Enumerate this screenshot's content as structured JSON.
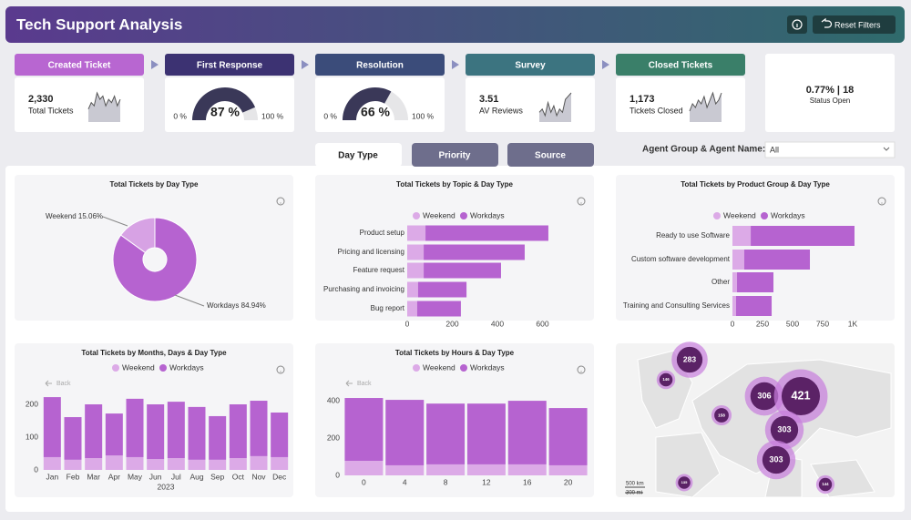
{
  "header": {
    "title": "Tech Support Analysis",
    "button": "Reset Filters"
  },
  "steps": [
    "Created Ticket",
    "First Response",
    "Resolution",
    "Survey",
    "Closed Tickets"
  ],
  "kpis": [
    {
      "type": "spark",
      "value": "2,330",
      "label": "Total Tickets",
      "spark": [
        4,
        6,
        5,
        9,
        7,
        8,
        5,
        7,
        6,
        8,
        5,
        7
      ]
    },
    {
      "type": "gauge",
      "value": 87,
      "value_label": "87 %",
      "min": {
        "value": 0,
        "label": "0 %"
      },
      "max": {
        "value": 100,
        "label": "100 %"
      }
    },
    {
      "type": "gauge",
      "value": 66,
      "value_label": "66 %",
      "min": {
        "value": 0,
        "label": "0 %"
      },
      "max": {
        "value": 100,
        "label": "100 %"
      }
    },
    {
      "type": "spark",
      "value": "3.51",
      "label": "AV Reviews",
      "spark": [
        3,
        4,
        2,
        6,
        3,
        5,
        2,
        4,
        3,
        7,
        8,
        9
      ]
    },
    {
      "type": "spark",
      "value": "1,173",
      "label": "Tickets Closed",
      "spark": [
        3,
        5,
        4,
        6,
        5,
        7,
        4,
        6,
        8,
        5,
        6,
        8
      ]
    }
  ],
  "status": {
    "value": "0.77% | 18",
    "label": "Status Open"
  },
  "tabs": [
    "Day Type",
    "Priority",
    "Source"
  ],
  "filter": {
    "label": "Agent Group & Agent Name:",
    "value": "All"
  },
  "chart_data": [
    {
      "type": "pie",
      "title": "Total Tickets by Day Type",
      "categories": [
        "Weekend",
        "Workdays"
      ],
      "values": [
        15.06,
        84.94
      ],
      "value_labels": [
        "15.06%",
        "84.94%"
      ],
      "colors": [
        "#d7a2e4",
        "#b663d0"
      ]
    },
    {
      "type": "hbar",
      "title": "Total Tickets by Topic & Day Type",
      "categories": [
        "Product setup",
        "Pricing and licensing",
        "Feature request",
        "Purchasing and invoicing",
        "Bug report"
      ],
      "series": [
        {
          "name": "Weekend",
          "color": "#dcaae7",
          "values": [
            81,
            73,
            73,
            48,
            44
          ]
        },
        {
          "name": "Workdays",
          "color": "#b663d0",
          "values": [
            545,
            448,
            343,
            215,
            194
          ]
        }
      ],
      "xlim": [
        0,
        640
      ],
      "xticks": [
        0,
        200,
        400,
        600
      ]
    },
    {
      "type": "hbar",
      "title": "Total Tickets by Product Group & Day Type",
      "categories": [
        "Ready to use Software",
        "Custom software development",
        "Other",
        "Training and Consulting Services"
      ],
      "series": [
        {
          "name": "Weekend",
          "color": "#dcaae7",
          "values": [
            152,
            98,
            38,
            30
          ]
        },
        {
          "name": "Workdays",
          "color": "#b663d0",
          "values": [
            863,
            546,
            303,
            296
          ]
        }
      ],
      "xlim": [
        0,
        1250
      ],
      "xticks": [
        0,
        250,
        500,
        750,
        {
          "value": 1000,
          "label": "1K"
        }
      ]
    },
    {
      "type": "bar",
      "title": "Total Tickets by Months, Days & Day Type",
      "back": "Back",
      "xlabel": "2023",
      "categories": [
        "Jan",
        "Feb",
        "Mar",
        "Apr",
        "May",
        "Jun",
        "Jul",
        "Aug",
        "Sep",
        "Oct",
        "Nov",
        "Dec"
      ],
      "series": [
        {
          "name": "Weekend",
          "color": "#dcaae7",
          "values": [
            39,
            31,
            36,
            44,
            39,
            33,
            36,
            31,
            31,
            36,
            42,
            39
          ]
        },
        {
          "name": "Workdays",
          "color": "#b663d0",
          "values": [
            183,
            130,
            164,
            128,
            178,
            167,
            172,
            161,
            133,
            164,
            169,
            136
          ]
        }
      ],
      "ylim": [
        0,
        240
      ],
      "yticks": [
        0,
        100,
        200
      ]
    },
    {
      "type": "bar",
      "title": "Total Tickets by Hours & Day Type",
      "back": "Back",
      "categories": [
        0,
        4,
        8,
        12,
        16,
        20
      ],
      "series": [
        {
          "name": "Weekend",
          "color": "#dcaae7",
          "values": [
            78,
            54,
            59,
            59,
            59,
            54
          ]
        },
        {
          "name": "Workdays",
          "color": "#b663d0",
          "values": [
            337,
            351,
            326,
            326,
            341,
            307
          ]
        }
      ],
      "ylim": [
        0,
        420
      ],
      "yticks": [
        0,
        200,
        400
      ]
    },
    {
      "type": "map",
      "values": [
        283,
        306,
        421,
        303,
        303,
        146,
        158,
        135,
        144
      ],
      "scale_labels": [
        "500 km",
        "300 mi"
      ]
    }
  ]
}
